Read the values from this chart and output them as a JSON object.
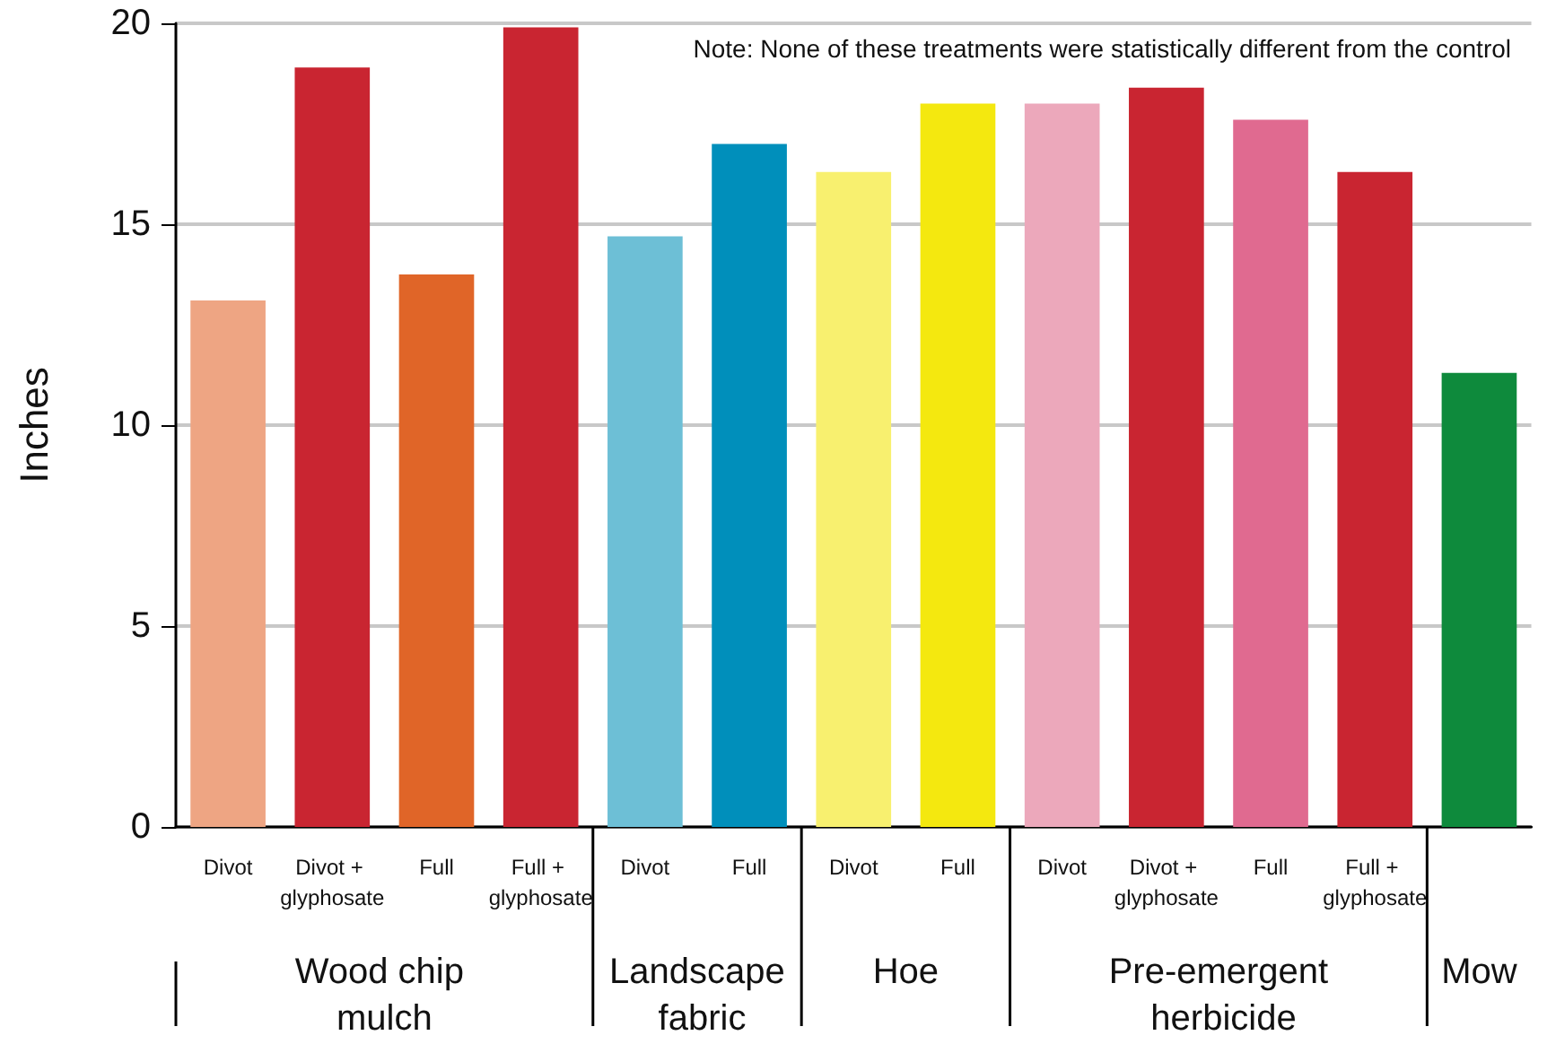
{
  "chart_data": {
    "type": "bar",
    "ylabel": "Inches",
    "categories": [
      "Divot",
      "Divot + glyphosate",
      "Full",
      "Full + glyphosate",
      "Divot",
      "Full",
      "Divot",
      "Full",
      "Divot",
      "Divot + glyphosate",
      "Full",
      "Full + glyphosate",
      null
    ],
    "values": [
      13.1,
      18.9,
      13.75,
      19.9,
      14.7,
      17.0,
      16.3,
      18.0,
      18.0,
      18.4,
      17.6,
      16.3,
      11.3
    ],
    "colors": [
      "#eea583",
      "#c92531",
      "#e06528",
      "#c92531",
      "#6dbfd6",
      "#008fbb",
      "#f8f06f",
      "#f4e80f",
      "#eca8bb",
      "#c92531",
      "#e06a90",
      "#c92531",
      "#0e8a3c"
    ],
    "ylim": [
      0,
      20
    ],
    "yticks": [
      0,
      5,
      10,
      15,
      20
    ],
    "grid": "y",
    "annotations": [
      "Note: None of these treatments were statistically different from the control",
      "Wood chip mulch",
      "Landscape fabric",
      "Hoe",
      "Pre-emergent herbicide",
      "Mow"
    ]
  }
}
